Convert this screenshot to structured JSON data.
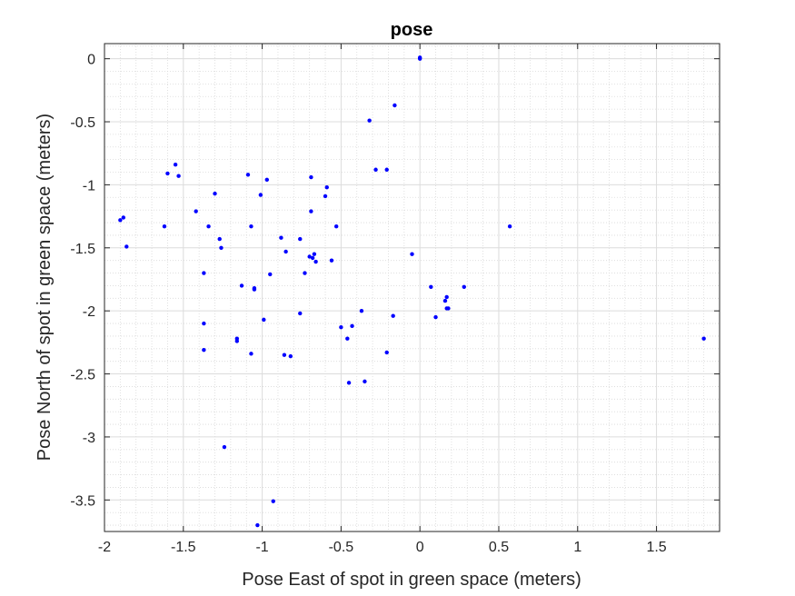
{
  "chart_data": {
    "type": "scatter",
    "title": "pose",
    "xlabel": "Pose East of spot in green space (meters)",
    "ylabel": "Pose North of spot in green space (meters)",
    "xlim": [
      -2,
      1.9
    ],
    "ylim": [
      -3.75,
      0.12
    ],
    "xticks": [
      -2,
      -1.5,
      -1,
      -0.5,
      0,
      0.5,
      1,
      1.5
    ],
    "xtick_labels": [
      "-2",
      "-1.5",
      "-1",
      "-0.5",
      "0",
      "0.5",
      "1",
      "1.5"
    ],
    "yticks": [
      0,
      -0.5,
      -1,
      -1.5,
      -2,
      -2.5,
      -3,
      -3.5
    ],
    "ytick_labels": [
      "0",
      "-0.5",
      "-1",
      "-1.5",
      "-2",
      "-2.5",
      "-3",
      "-3.5"
    ],
    "grid": true,
    "minor_grid": true,
    "marker_color": "#0000ff",
    "points": [
      {
        "x": 0.0,
        "y": 0.01
      },
      {
        "x": 0.0,
        "y": 0.0
      },
      {
        "x": -0.16,
        "y": -0.37
      },
      {
        "x": -0.32,
        "y": -0.49
      },
      {
        "x": -0.28,
        "y": -0.88
      },
      {
        "x": -0.21,
        "y": -0.88
      },
      {
        "x": -1.55,
        "y": -0.84
      },
      {
        "x": -1.6,
        "y": -0.91
      },
      {
        "x": -1.53,
        "y": -0.93
      },
      {
        "x": -1.09,
        "y": -0.92
      },
      {
        "x": -0.97,
        "y": -0.96
      },
      {
        "x": -0.69,
        "y": -0.94
      },
      {
        "x": -0.59,
        "y": -1.02
      },
      {
        "x": -0.6,
        "y": -1.09
      },
      {
        "x": -1.3,
        "y": -1.07
      },
      {
        "x": -1.01,
        "y": -1.08
      },
      {
        "x": -1.42,
        "y": -1.21
      },
      {
        "x": -0.69,
        "y": -1.21
      },
      {
        "x": -1.88,
        "y": -1.26
      },
      {
        "x": -1.9,
        "y": -1.28
      },
      {
        "x": -1.62,
        "y": -1.33
      },
      {
        "x": -1.34,
        "y": -1.33
      },
      {
        "x": -1.07,
        "y": -1.33
      },
      {
        "x": -0.53,
        "y": -1.33
      },
      {
        "x": 0.57,
        "y": -1.33
      },
      {
        "x": -1.27,
        "y": -1.43
      },
      {
        "x": -0.88,
        "y": -1.42
      },
      {
        "x": -0.76,
        "y": -1.43
      },
      {
        "x": -1.86,
        "y": -1.49
      },
      {
        "x": -1.26,
        "y": -1.5
      },
      {
        "x": -0.85,
        "y": -1.53
      },
      {
        "x": -0.67,
        "y": -1.55
      },
      {
        "x": -0.68,
        "y": -1.58
      },
      {
        "x": -0.7,
        "y": -1.57
      },
      {
        "x": -0.66,
        "y": -1.61
      },
      {
        "x": -0.56,
        "y": -1.6
      },
      {
        "x": -0.05,
        "y": -1.55
      },
      {
        "x": -1.37,
        "y": -1.7
      },
      {
        "x": -0.95,
        "y": -1.71
      },
      {
        "x": -0.73,
        "y": -1.7
      },
      {
        "x": -1.13,
        "y": -1.8
      },
      {
        "x": -1.05,
        "y": -1.82
      },
      {
        "x": -1.05,
        "y": -1.83
      },
      {
        "x": 0.07,
        "y": -1.81
      },
      {
        "x": 0.28,
        "y": -1.81
      },
      {
        "x": 0.17,
        "y": -1.89
      },
      {
        "x": 0.16,
        "y": -1.92
      },
      {
        "x": 0.17,
        "y": -1.98
      },
      {
        "x": 0.18,
        "y": -1.98
      },
      {
        "x": -0.37,
        "y": -2.0
      },
      {
        "x": -0.76,
        "y": -2.02
      },
      {
        "x": -0.17,
        "y": -2.04
      },
      {
        "x": 0.1,
        "y": -2.05
      },
      {
        "x": -1.37,
        "y": -2.1
      },
      {
        "x": -0.99,
        "y": -2.07
      },
      {
        "x": -0.5,
        "y": -2.13
      },
      {
        "x": -0.43,
        "y": -2.12
      },
      {
        "x": 1.8,
        "y": -2.22
      },
      {
        "x": -1.16,
        "y": -2.22
      },
      {
        "x": -1.16,
        "y": -2.24
      },
      {
        "x": -0.46,
        "y": -2.22
      },
      {
        "x": -1.37,
        "y": -2.31
      },
      {
        "x": -1.07,
        "y": -2.34
      },
      {
        "x": -0.86,
        "y": -2.35
      },
      {
        "x": -0.82,
        "y": -2.36
      },
      {
        "x": -0.21,
        "y": -2.33
      },
      {
        "x": -0.45,
        "y": -2.57
      },
      {
        "x": -0.35,
        "y": -2.56
      },
      {
        "x": -1.24,
        "y": -3.08
      },
      {
        "x": -0.93,
        "y": -3.51
      },
      {
        "x": -1.03,
        "y": -3.7
      }
    ]
  }
}
